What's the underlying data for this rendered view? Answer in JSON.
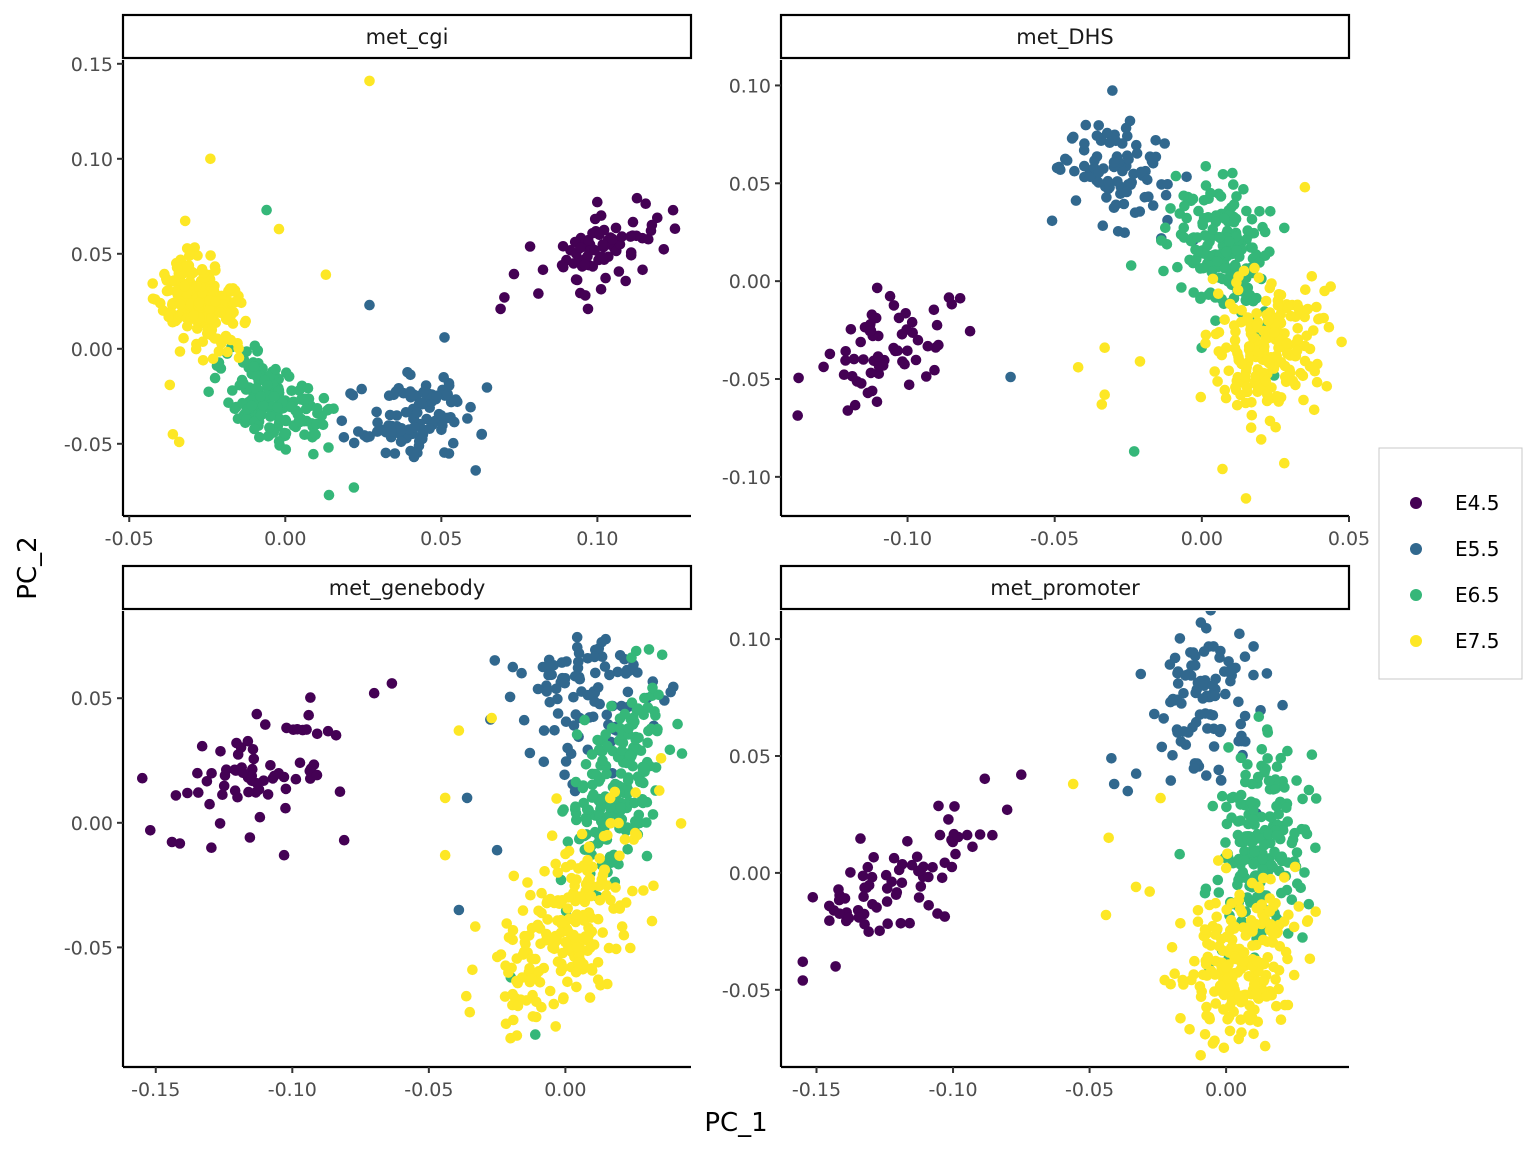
{
  "chart_data": {
    "type": "scatter",
    "xlabel": "PC_1",
    "ylabel": "PC_2",
    "legend": {
      "placement": "right",
      "entries": [
        {
          "label": "E4.5",
          "color": "#440154"
        },
        {
          "label": "E5.5",
          "color": "#31688E"
        },
        {
          "label": "E6.5",
          "color": "#35B779"
        },
        {
          "label": "E7.5",
          "color": "#FDE725"
        }
      ]
    },
    "panels": [
      {
        "title": "met_cgi",
        "xlim": [
          -0.052,
          0.13
        ],
        "ylim": [
          -0.088,
          0.152
        ],
        "xticks": [
          -0.05,
          0.0,
          0.05,
          0.1
        ],
        "xtick_labels": [
          "-0.05",
          "0.00",
          "0.05",
          "0.10"
        ],
        "yticks": [
          -0.05,
          0.0,
          0.05,
          0.1,
          0.15
        ],
        "ytick_labels": [
          "-0.05",
          "0.00",
          "0.05",
          "0.10",
          "0.15"
        ],
        "clusters": [
          {
            "group": 0,
            "cx": 0.1,
            "cy": 0.052,
            "sx": 0.011,
            "sy": 0.012,
            "rho": 0.55,
            "n": 80
          },
          {
            "group": 1,
            "cx": 0.043,
            "cy": -0.037,
            "sx": 0.009,
            "sy": 0.01,
            "rho": 0.15,
            "n": 110
          },
          {
            "group": 2,
            "cx": -0.004,
            "cy": -0.028,
            "sx": 0.008,
            "sy": 0.012,
            "rho": -0.35,
            "n": 170
          },
          {
            "group": 3,
            "cx": -0.027,
            "cy": 0.024,
            "sx": 0.007,
            "sy": 0.013,
            "rho": -0.3,
            "n": 210
          }
        ],
        "extra_points": [
          {
            "group": 3,
            "x": 0.027,
            "y": 0.141
          },
          {
            "group": 3,
            "x": -0.024,
            "y": 0.1
          },
          {
            "group": 3,
            "x": -0.002,
            "y": 0.063
          },
          {
            "group": 3,
            "x": 0.013,
            "y": 0.039
          },
          {
            "group": 3,
            "x": -0.037,
            "y": -0.019
          },
          {
            "group": 3,
            "x": -0.036,
            "y": -0.045
          },
          {
            "group": 3,
            "x": -0.034,
            "y": -0.049
          },
          {
            "group": 2,
            "x": -0.006,
            "y": 0.073
          },
          {
            "group": 2,
            "x": 0.014,
            "y": -0.077
          },
          {
            "group": 2,
            "x": 0.022,
            "y": -0.073
          },
          {
            "group": 1,
            "x": 0.027,
            "y": 0.023
          },
          {
            "group": 1,
            "x": 0.051,
            "y": 0.006
          },
          {
            "group": 1,
            "x": 0.061,
            "y": -0.064
          },
          {
            "group": 0,
            "x": 0.069,
            "y": 0.021
          },
          {
            "group": 0,
            "x": 0.097,
            "y": 0.021
          }
        ]
      },
      {
        "title": "met_DHS",
        "xlim": [
          -0.143,
          0.05
        ],
        "ylim": [
          -0.12,
          0.113
        ],
        "xticks": [
          -0.1,
          -0.05,
          0.0,
          0.05
        ],
        "xtick_labels": [
          "-0.10",
          "-0.05",
          "0.00",
          "0.05"
        ],
        "yticks": [
          -0.1,
          -0.05,
          0.0,
          0.05,
          0.1
        ],
        "ytick_labels": [
          "-0.10",
          "-0.05",
          "0.00",
          "0.05",
          "0.10"
        ],
        "clusters": [
          {
            "group": 0,
            "cx": -0.108,
            "cy": -0.037,
            "sx": 0.013,
            "sy": 0.015,
            "rho": 0.65,
            "n": 65
          },
          {
            "group": 1,
            "cx": -0.029,
            "cy": 0.056,
            "sx": 0.009,
            "sy": 0.013,
            "rho": -0.25,
            "n": 90
          },
          {
            "group": 2,
            "cx": 0.007,
            "cy": 0.017,
            "sx": 0.008,
            "sy": 0.018,
            "rho": -0.2,
            "n": 180
          },
          {
            "group": 3,
            "cx": 0.022,
            "cy": -0.033,
            "sx": 0.009,
            "sy": 0.017,
            "rho": 0.1,
            "n": 210
          }
        ],
        "extra_points": [
          {
            "group": 1,
            "x": -0.065,
            "y": -0.049
          },
          {
            "group": 2,
            "x": -0.023,
            "y": -0.087
          },
          {
            "group": 2,
            "x": -0.024,
            "y": 0.008
          },
          {
            "group": 3,
            "x": -0.042,
            "y": -0.044
          },
          {
            "group": 3,
            "x": -0.033,
            "y": -0.034
          },
          {
            "group": 3,
            "x": -0.021,
            "y": -0.041
          },
          {
            "group": 3,
            "x": -0.033,
            "y": -0.058
          },
          {
            "group": 3,
            "x": -0.034,
            "y": -0.063
          },
          {
            "group": 3,
            "x": 0.007,
            "y": -0.096
          },
          {
            "group": 3,
            "x": 0.015,
            "y": -0.111
          },
          {
            "group": 3,
            "x": 0.028,
            "y": -0.093
          },
          {
            "group": 3,
            "x": 0.035,
            "y": 0.048
          }
        ]
      },
      {
        "title": "met_genebody",
        "xlim": [
          -0.162,
          0.046
        ],
        "ylim": [
          -0.098,
          0.085
        ],
        "xticks": [
          -0.15,
          -0.1,
          -0.05,
          0.0
        ],
        "xtick_labels": [
          "-0.15",
          "-0.10",
          "-0.05",
          "0.00"
        ],
        "yticks": [
          -0.05,
          0.0,
          0.05
        ],
        "ytick_labels": [
          "-0.05",
          "0.00",
          "0.05"
        ],
        "clusters": [
          {
            "group": 0,
            "cx": -0.112,
            "cy": 0.024,
            "sx": 0.016,
            "sy": 0.013,
            "rho": 0.6,
            "n": 70
          },
          {
            "group": 1,
            "cx": 0.007,
            "cy": 0.053,
            "sx": 0.012,
            "sy": 0.015,
            "rho": 0.3,
            "n": 100
          },
          {
            "group": 2,
            "cx": 0.019,
            "cy": 0.016,
            "sx": 0.009,
            "sy": 0.02,
            "rho": 0.45,
            "n": 200
          },
          {
            "group": 3,
            "cx": 0.001,
            "cy": -0.04,
            "sx": 0.015,
            "sy": 0.022,
            "rho": 0.6,
            "n": 220
          }
        ],
        "extra_points": [
          {
            "group": 0,
            "x": -0.07,
            "y": 0.052
          },
          {
            "group": 0,
            "x": -0.081,
            "y": -0.007
          },
          {
            "group": 0,
            "x": -0.103,
            "y": -0.013
          },
          {
            "group": 0,
            "x": -0.152,
            "y": -0.003
          },
          {
            "group": 1,
            "x": -0.036,
            "y": 0.01
          },
          {
            "group": 1,
            "x": -0.039,
            "y": -0.035
          },
          {
            "group": 1,
            "x": -0.025,
            "y": -0.011
          },
          {
            "group": 1,
            "x": -0.013,
            "y": 0.028
          },
          {
            "group": 3,
            "x": -0.044,
            "y": 0.01
          },
          {
            "group": 3,
            "x": -0.044,
            "y": -0.013
          },
          {
            "group": 3,
            "x": -0.039,
            "y": 0.037
          },
          {
            "group": 3,
            "x": -0.027,
            "y": 0.042
          },
          {
            "group": 3,
            "x": -0.035,
            "y": -0.076
          },
          {
            "group": 2,
            "x": -0.02,
            "y": -0.062
          },
          {
            "group": 2,
            "x": -0.011,
            "y": -0.085
          }
        ]
      },
      {
        "title": "met_promoter",
        "xlim": [
          -0.163,
          0.045
        ],
        "ylim": [
          -0.083,
          0.112
        ],
        "xticks": [
          -0.15,
          -0.1,
          -0.05,
          0.0
        ],
        "xtick_labels": [
          "-0.15",
          "-0.10",
          "-0.05",
          "0.00"
        ],
        "yticks": [
          -0.05,
          0.0,
          0.05,
          0.1
        ],
        "ytick_labels": [
          "-0.05",
          "0.00",
          "0.05",
          "0.10"
        ],
        "clusters": [
          {
            "group": 0,
            "cx": -0.118,
            "cy": -0.004,
            "sx": 0.017,
            "sy": 0.016,
            "rho": 0.75,
            "n": 75
          },
          {
            "group": 1,
            "cx": -0.006,
            "cy": 0.072,
            "sx": 0.01,
            "sy": 0.016,
            "rho": 0.1,
            "n": 100
          },
          {
            "group": 2,
            "cx": 0.013,
            "cy": 0.01,
            "sx": 0.009,
            "sy": 0.021,
            "rho": 0.15,
            "n": 200
          },
          {
            "group": 3,
            "cx": 0.006,
            "cy": -0.037,
            "sx": 0.011,
            "sy": 0.017,
            "rho": 0.2,
            "n": 220
          }
        ],
        "extra_points": [
          {
            "group": 0,
            "x": -0.075,
            "y": 0.042
          },
          {
            "group": 0,
            "x": -0.155,
            "y": -0.038
          },
          {
            "group": 0,
            "x": -0.155,
            "y": -0.046
          },
          {
            "group": 0,
            "x": -0.143,
            "y": -0.04
          },
          {
            "group": 1,
            "x": -0.036,
            "y": 0.035
          },
          {
            "group": 1,
            "x": -0.042,
            "y": 0.049
          },
          {
            "group": 1,
            "x": -0.041,
            "y": 0.038
          },
          {
            "group": 3,
            "x": -0.056,
            "y": 0.038
          },
          {
            "group": 3,
            "x": -0.044,
            "y": -0.018
          },
          {
            "group": 3,
            "x": -0.043,
            "y": 0.015
          },
          {
            "group": 3,
            "x": -0.033,
            "y": -0.006
          },
          {
            "group": 3,
            "x": -0.028,
            "y": -0.008
          },
          {
            "group": 3,
            "x": -0.024,
            "y": 0.032
          },
          {
            "group": 2,
            "x": -0.017,
            "y": 0.008
          }
        ]
      }
    ]
  }
}
